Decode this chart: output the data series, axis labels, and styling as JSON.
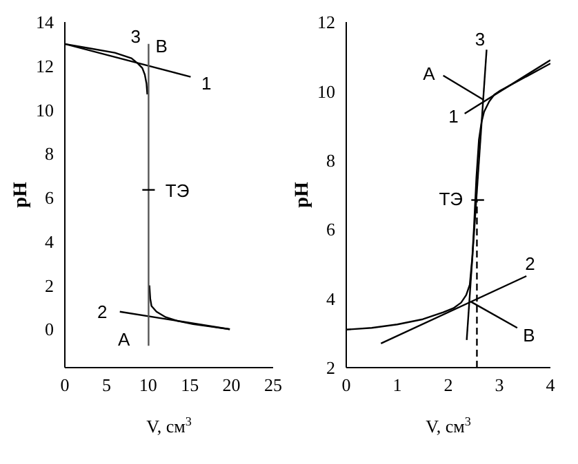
{
  "chart_data": [
    {
      "type": "line",
      "xlabel": "V, см$^{3}$",
      "ylabel": "pH",
      "xlim": [
        0,
        25
      ],
      "xticks": [
        0,
        5,
        10,
        15,
        20,
        25
      ],
      "ylim": [
        -1.75,
        14
      ],
      "yticks": [
        0,
        2,
        4,
        6,
        8,
        10,
        12,
        14
      ],
      "marker": "none",
      "series": [
        {
          "color": "#000000",
          "x": [
            0,
            3,
            6,
            8,
            8.8,
            9.3,
            9.6,
            9.8,
            9.9,
            10.0,
            10.15,
            10.25,
            10.4,
            11,
            12.1,
            13.5,
            15.4,
            17.5,
            19.8
          ],
          "values": [
            13,
            12.8,
            12.6,
            12.35,
            12.1,
            11.9,
            11.6,
            11.2,
            10.7,
            null,
            2.0,
            1.4,
            1.06,
            0.8,
            0.55,
            0.38,
            0.23,
            0.12,
            0
          ]
        },
        {
          "color": "#000000",
          "x": [
            0,
            15.1
          ],
          "values": [
            13,
            11.5
          ]
        },
        {
          "color": "#000000",
          "x": [
            6.6,
            19.8
          ],
          "values": [
            0.8,
            0
          ]
        },
        {
          "color": "#555555",
          "x": [
            10.05,
            10.05
          ],
          "values": [
            -0.75,
            13
          ]
        },
        {
          "color": "#000000",
          "x": [
            9.3,
            10.8
          ],
          "values": [
            6.35,
            6.35
          ]
        }
      ],
      "annotations": [
        "3",
        "B",
        "1",
        "2",
        "A",
        "ТЭ"
      ]
    },
    {
      "type": "line",
      "xlabel": "V, см$^{3}$",
      "ylabel": "pH",
      "xlim": [
        0,
        4
      ],
      "xticks": [
        0,
        1,
        2,
        3,
        4
      ],
      "ylim": [
        2,
        12
      ],
      "yticks": [
        2,
        4,
        6,
        8,
        10,
        12
      ],
      "marker": "none",
      "series": [
        {
          "color": "#000000",
          "x": [
            0,
            0.5,
            1,
            1.5,
            1.9,
            2.1,
            2.25,
            2.35,
            2.42,
            2.47,
            2.5,
            2.55,
            2.6,
            2.65,
            2.7,
            2.8,
            2.9,
            3,
            3.5,
            4
          ],
          "values": [
            3.1,
            3.15,
            3.25,
            3.4,
            3.6,
            3.72,
            3.88,
            4.1,
            4.4,
            5.2,
            6.0,
            7.5,
            8.6,
            9.1,
            9.4,
            9.7,
            9.9,
            10.0,
            10.4,
            10.8
          ]
        },
        {
          "color": "#000000",
          "x": [
            2.32,
            4
          ],
          "values": [
            9.35,
            10.9
          ]
        },
        {
          "color": "#000000",
          "x": [
            0.68,
            3.53
          ],
          "values": [
            2.7,
            4.65
          ]
        },
        {
          "color": "#000000",
          "x": [
            2.36,
            2.75
          ],
          "values": [
            2.8,
            11.2
          ]
        },
        {
          "color": "#000000",
          "x": [
            2.56,
            2.56
          ],
          "values": [
            2,
            6.85
          ],
          "line_style": "dashed"
        },
        {
          "color": "#000000",
          "x": [
            2.45,
            2.7
          ],
          "values": [
            6.85,
            6.85
          ]
        },
        {
          "color": "#000000",
          "x": [
            1.9,
            2.69
          ],
          "values": [
            10.45,
            9.75
          ]
        },
        {
          "color": "#000000",
          "x": [
            3.35,
            2.45
          ],
          "values": [
            3.15,
            3.9
          ]
        }
      ],
      "annotations": [
        "3",
        "A",
        "1",
        "ТЭ",
        "2",
        "B"
      ]
    }
  ]
}
